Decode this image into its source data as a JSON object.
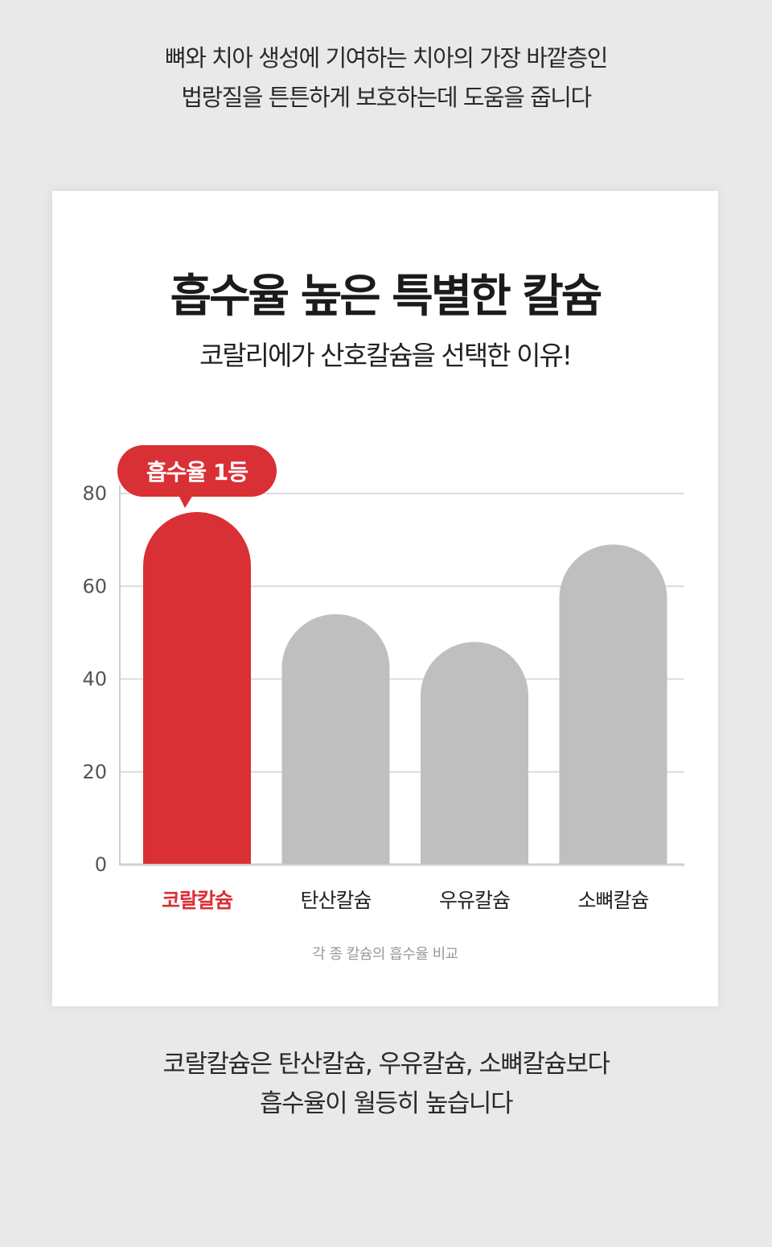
{
  "intro": {
    "line1": "뼈와 치아 생성에 기여하는 치아의 가장 바깥층인",
    "line2": "법랑질을 튼튼하게 보호하는데 도움을 줍니다"
  },
  "card": {
    "title": "흡수율 높은 특별한 칼슘",
    "subtitle": "코랄리에가 산호칼슘을 선택한 이유!",
    "caption": "각 종 칼슘의 흡수율 비교"
  },
  "outro": {
    "line1": "코랄칼슘은 탄산칼슘, 우유칼슘, 소뼈칼슘보다",
    "line2": "흡수율이 월등히 높습니다"
  },
  "chart_data": {
    "type": "bar",
    "categories": [
      "코랄칼슘",
      "탄산칼슘",
      "우유칼슘",
      "소뼈칼슘"
    ],
    "values": [
      76,
      54,
      48,
      69
    ],
    "ylim": [
      0,
      80
    ],
    "yticks": [
      "0",
      "20",
      "40",
      "60",
      "80"
    ],
    "grid": true,
    "highlight_index": 0,
    "badge": "흡수율 1등",
    "colors": {
      "highlight": "#d93035",
      "bar": "#bfbfbf",
      "grid": "#dcdcdc",
      "axis": "#cfcfcf"
    }
  }
}
